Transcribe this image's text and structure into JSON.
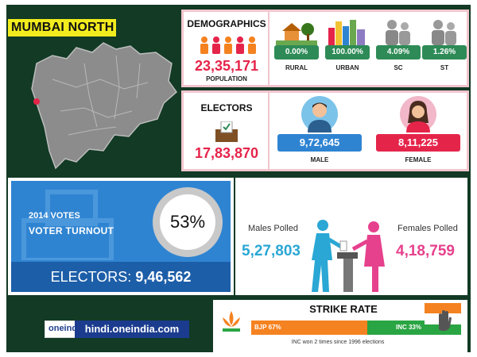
{
  "header": {
    "constituency": "MUMBAI NORTH"
  },
  "demographics": {
    "title": "DEMOGRAPHICS",
    "population": "23,35,171",
    "population_label": "POPULATION",
    "stats": [
      {
        "value": "0.00%",
        "label": "RURAL",
        "icon": "rural-house-icon"
      },
      {
        "value": "100.00%",
        "label": "URBAN",
        "icon": "city-buildings-icon"
      },
      {
        "value": "4.09%",
        "label": "SC",
        "icon": "people-sc-icon"
      },
      {
        "value": "1.26%",
        "label": "ST",
        "icon": "people-st-icon"
      }
    ]
  },
  "electors": {
    "title": "ELECTORS",
    "total": "17,83,870",
    "male": {
      "value": "9,72,645",
      "label": "MALE",
      "color": "#2f84d2"
    },
    "female": {
      "value": "8,11,225",
      "label": "FEMALE",
      "color": "#e5244a"
    }
  },
  "turnout": {
    "year_label": "2014 VOTES",
    "label": "VOTER TURNOUT",
    "percent": 53,
    "percent_text": "53%",
    "electors_label": "ELECTORS:",
    "electors_value": "9,46,562"
  },
  "polled": {
    "male_label": "Males Polled",
    "male_value": "5,27,803",
    "female_label": "Females Polled",
    "female_value": "4,18,759"
  },
  "branding": {
    "logo_text": "oneindia",
    "url": "hindi.oneindia.com"
  },
  "strike_rate": {
    "title": "STRIKE RATE",
    "bjp_label": "BJP 67%",
    "bjp_percent": 67,
    "inc_label": "INC 33%",
    "inc_percent": 33,
    "note": "INC won 2 times since 1996 elections",
    "bjp_color": "#f58220",
    "inc_color": "#2aa543"
  }
}
